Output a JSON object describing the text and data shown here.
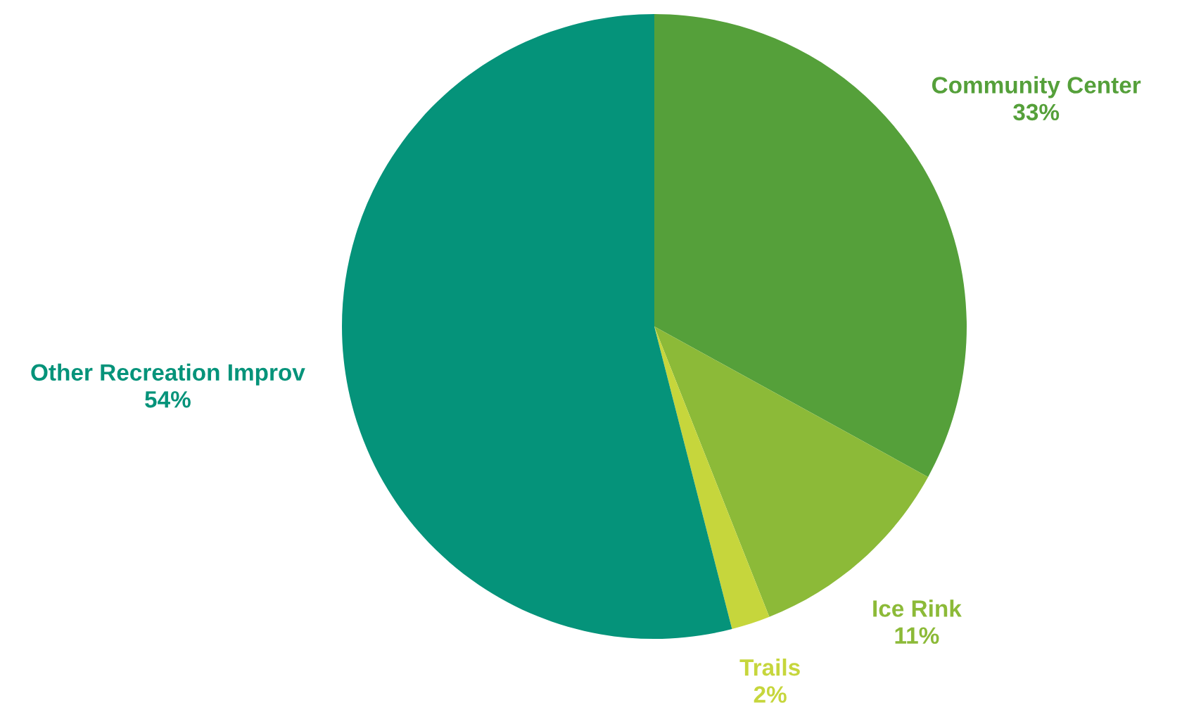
{
  "chart_data": {
    "type": "pie",
    "categories": [
      "Community Center",
      "Ice Rink",
      "Trails",
      "Other Recreation Improv"
    ],
    "values": [
      33,
      11,
      2,
      54
    ],
    "colors": [
      "#55a03a",
      "#8cba38",
      "#c6d63c",
      "#05937a"
    ],
    "value_labels": [
      "33%",
      "11%",
      "2%",
      "54%"
    ],
    "legend": false
  }
}
